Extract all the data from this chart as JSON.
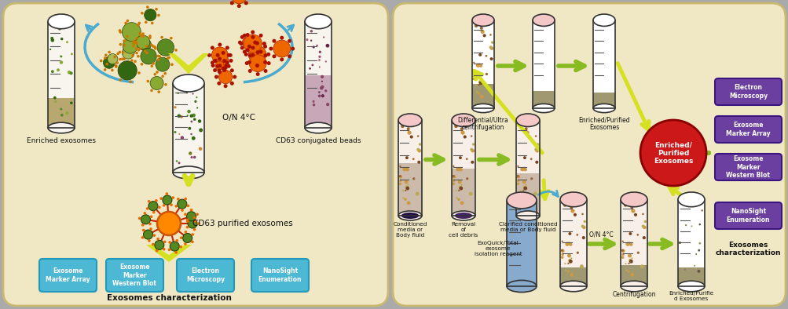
{
  "bg_left": "#f0e8c4",
  "bg_right": "#f0e8c4",
  "bg_border": "#c8b870",
  "left_panel": {
    "label_enriched": "Enriched exosomes",
    "label_cd63_beads": "CD63 conjugated beads",
    "label_on_4c": "O/N 4°C",
    "label_cd63_purified": "CD63 purified exosomes",
    "label_characterization": "Exosomes characterization",
    "boxes": [
      "Exosome\nMarker Array",
      "Exosome\nMarker\nWestern Blot",
      "Electron\nMicroscopy",
      "NanoSight\nEnumeration"
    ],
    "box_color": "#4db8d4"
  },
  "right_panel": {
    "label_conditioned": "Conditioned\nmedia or\nBody fluid",
    "label_removal": "Removal\nof\ncell debris",
    "label_clarified": "Clarified conditioned\nmedia or Body fluid",
    "label_differential": "Differential/Ultra\ncentrifugation",
    "label_enriched_purified_top": "Enriched/Purified\nExosomes",
    "label_exoquick": "ExoQuick/Total\nexosome\nisolation reagent",
    "label_on_4c": "O/N 4°C",
    "label_centrifugation": "Centrifugation",
    "label_enriched_purified_bottom": "Enriched/Purifie\nd Exosomes",
    "label_enriched_circle": "Enriched/\nPurified\nExosomes",
    "label_characterization": "Exosomes\ncharacterization",
    "boxes": [
      "Electron\nMicroscopy",
      "Exosome\nMarker Array",
      "Exosome\nMarker\nWestern Blot",
      "NanoSight\nEnumeration"
    ],
    "box_color": "#6b3fa0"
  },
  "arrow_blue": "#4aaad0",
  "arrow_yellow": "#d4e020",
  "arrow_green": "#88bb22",
  "circle_red": "#cc1818"
}
